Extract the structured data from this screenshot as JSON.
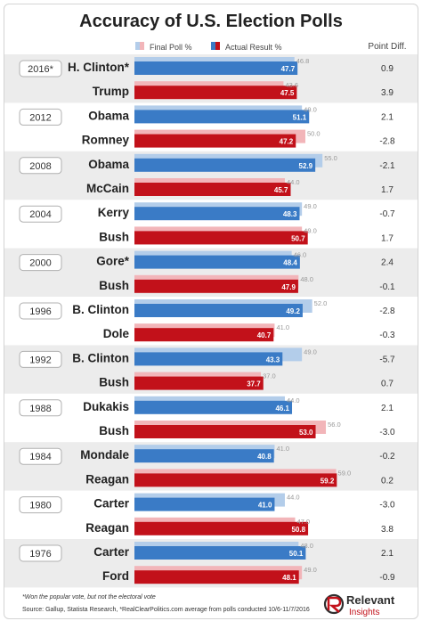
{
  "chart_data": {
    "type": "bar",
    "title": "Accuracy of U.S. Election Polls",
    "legend": {
      "final_poll": "Final Poll %",
      "actual_result": "Actual Result %",
      "point_diff": "Point Diff."
    },
    "colors": {
      "dem_poll": "#b3cdea",
      "dem_result": "#3a7bc6",
      "rep_poll": "#f2b5b9",
      "rep_result": "#c2111a",
      "band": "#ececec"
    },
    "rows": [
      {
        "year": "2016*",
        "candidate": "H. Clinton*",
        "party": "D",
        "poll": 46.8,
        "result": 47.7,
        "diff": "0.9"
      },
      {
        "year": "",
        "candidate": "Trump",
        "party": "R",
        "poll": 43.6,
        "result": 47.5,
        "diff": "3.9"
      },
      {
        "year": "2012",
        "candidate": "Obama",
        "party": "D",
        "poll": 49.0,
        "result": 51.1,
        "diff": "2.1"
      },
      {
        "year": "",
        "candidate": "Romney",
        "party": "R",
        "poll": 50.0,
        "result": 47.2,
        "diff": "-2.8"
      },
      {
        "year": "2008",
        "candidate": "Obama",
        "party": "D",
        "poll": 55.0,
        "result": 52.9,
        "diff": "-2.1"
      },
      {
        "year": "",
        "candidate": "McCain",
        "party": "R",
        "poll": 44.0,
        "result": 45.7,
        "diff": "1.7"
      },
      {
        "year": "2004",
        "candidate": "Kerry",
        "party": "D",
        "poll": 49.0,
        "result": 48.3,
        "diff": "-0.7"
      },
      {
        "year": "",
        "candidate": "Bush",
        "party": "R",
        "poll": 49.0,
        "result": 50.7,
        "diff": "1.7"
      },
      {
        "year": "2000",
        "candidate": "Gore*",
        "party": "D",
        "poll": 46.0,
        "result": 48.4,
        "diff": "2.4"
      },
      {
        "year": "",
        "candidate": "Bush",
        "party": "R",
        "poll": 48.0,
        "result": 47.9,
        "diff": "-0.1"
      },
      {
        "year": "1996",
        "candidate": "B. Clinton",
        "party": "D",
        "poll": 52.0,
        "result": 49.2,
        "diff": "-2.8"
      },
      {
        "year": "",
        "candidate": "Dole",
        "party": "R",
        "poll": 41.0,
        "result": 40.7,
        "diff": "-0.3"
      },
      {
        "year": "1992",
        "candidate": "B. Clinton",
        "party": "D",
        "poll": 49.0,
        "result": 43.3,
        "diff": "-5.7"
      },
      {
        "year": "",
        "candidate": "Bush",
        "party": "R",
        "poll": 37.0,
        "result": 37.7,
        "diff": "0.7"
      },
      {
        "year": "1988",
        "candidate": "Dukakis",
        "party": "D",
        "poll": 44.0,
        "result": 46.1,
        "diff": "2.1"
      },
      {
        "year": "",
        "candidate": "Bush",
        "party": "R",
        "poll": 56.0,
        "result": 53.0,
        "diff": "-3.0"
      },
      {
        "year": "1984",
        "candidate": "Mondale",
        "party": "D",
        "poll": 41.0,
        "result": 40.8,
        "diff": "-0.2"
      },
      {
        "year": "",
        "candidate": "Reagan",
        "party": "R",
        "poll": 59.0,
        "result": 59.2,
        "diff": "0.2"
      },
      {
        "year": "1980",
        "candidate": "Carter",
        "party": "D",
        "poll": 44.0,
        "result": 41.0,
        "diff": "-3.0"
      },
      {
        "year": "",
        "candidate": "Reagan",
        "party": "R",
        "poll": 47.0,
        "result": 50.8,
        "diff": "3.8"
      },
      {
        "year": "1976",
        "candidate": "Carter",
        "party": "D",
        "poll": 48.0,
        "result": 50.1,
        "diff": "2.1"
      },
      {
        "year": "",
        "candidate": "Ford",
        "party": "R",
        "poll": 49.0,
        "result": 48.1,
        "diff": "-0.9"
      }
    ],
    "xlim": [
      0,
      60
    ],
    "grid": false,
    "footnote": "*Won the popular vote, but not the electoral vote",
    "source": "Source: Gallup, Statista Research, *RealClearPolitics.com average from polls conducted 10/6-11/7/2016"
  },
  "brand": {
    "name_line1": "Relevant",
    "name_line2": "Insights"
  }
}
